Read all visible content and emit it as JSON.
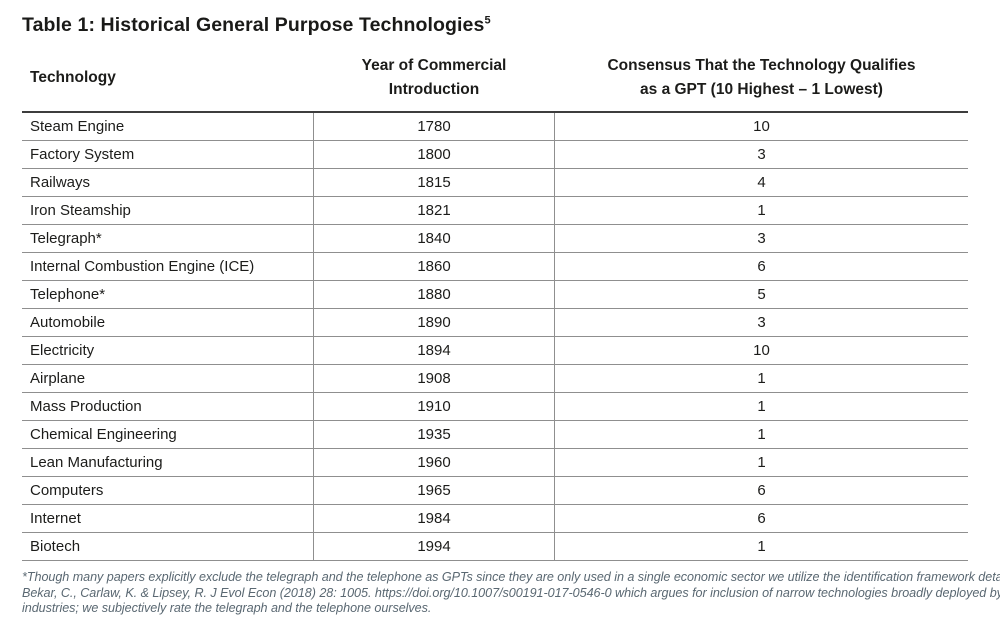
{
  "title": {
    "text": "Table 1: Historical General Purpose Technologies",
    "superscript": "5"
  },
  "table": {
    "columns": [
      {
        "lines": [
          "Technology"
        ]
      },
      {
        "lines": [
          "Year of Commercial",
          "Introduction"
        ]
      },
      {
        "lines": [
          "Consensus That the Technology Qualifies",
          "as a GPT (10 Highest – 1 Lowest)"
        ]
      }
    ],
    "rows": [
      {
        "technology": "Steam Engine",
        "year": "1780",
        "consensus": "10"
      },
      {
        "technology": "Factory System",
        "year": "1800",
        "consensus": "3"
      },
      {
        "technology": "Railways",
        "year": "1815",
        "consensus": "4"
      },
      {
        "technology": "Iron Steamship",
        "year": "1821",
        "consensus": "1"
      },
      {
        "technology": "Telegraph*",
        "year": "1840",
        "consensus": "3"
      },
      {
        "technology": "Internal Combustion Engine (ICE)",
        "year": "1860",
        "consensus": "6"
      },
      {
        "technology": "Telephone*",
        "year": "1880",
        "consensus": "5"
      },
      {
        "technology": "Automobile",
        "year": "1890",
        "consensus": "3"
      },
      {
        "technology": "Electricity",
        "year": "1894",
        "consensus": "10"
      },
      {
        "technology": "Airplane",
        "year": "1908",
        "consensus": "1"
      },
      {
        "technology": "Mass Production",
        "year": "1910",
        "consensus": "1"
      },
      {
        "technology": "Chemical Engineering",
        "year": "1935",
        "consensus": "1"
      },
      {
        "technology": "Lean Manufacturing",
        "year": "1960",
        "consensus": "1"
      },
      {
        "technology": "Computers",
        "year": "1965",
        "consensus": "6"
      },
      {
        "technology": "Internet",
        "year": "1984",
        "consensus": "6"
      },
      {
        "technology": "Biotech",
        "year": "1994",
        "consensus": "1"
      }
    ]
  },
  "footnote": {
    "lines": [
      "*Though many papers explicitly exclude the telegraph and the telephone as GPTs since they are only used in a single economic sector we utilize the identification framework detailed in",
      "Bekar, C., Carlaw, K. & Lipsey, R. J Evol Econ (2018) 28: 1005. https://doi.org/10.1007/s00191-017-0546-0 which argues for inclusion of narrow technologies broadly deployed by all",
      "industries; we subjectively rate the telegraph and the telephone ourselves."
    ]
  },
  "colors": {
    "header_rule": "#3d3d3d",
    "row_rule": "#8f8f8f",
    "body_text": "#1c1c1a",
    "footnote_text": "#5a6872",
    "background": "#ffffff"
  }
}
